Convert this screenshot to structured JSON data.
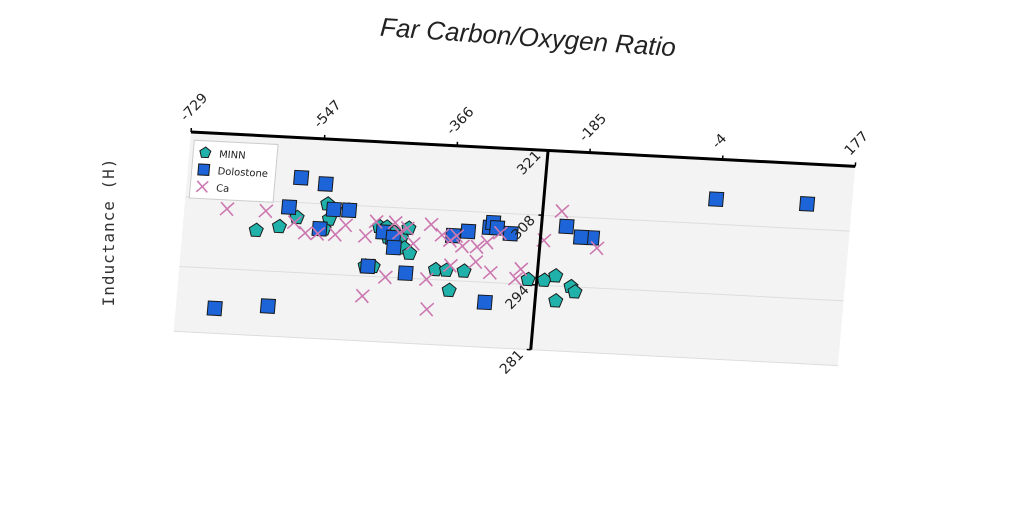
{
  "chart_data": {
    "type": "scatter",
    "title": "Far Carbon/Oxygen Ratio",
    "xlabel": "",
    "ylabel": "Inductance (H)",
    "x_ticks": [
      "-729",
      "-547",
      "-366",
      "-185",
      "-4",
      "177"
    ],
    "y_ticks": [
      "281",
      "294",
      "308",
      "321"
    ],
    "xlim": [
      -729,
      177
    ],
    "ylim": [
      281,
      321
    ],
    "grid": true,
    "legend_position": "top-left",
    "series": [
      {
        "name": "MINN",
        "marker": "pentagon",
        "color": "#20b2aa",
        "points": [
          [
            -629,
            302
          ],
          [
            -598,
            303
          ],
          [
            -575,
            305
          ],
          [
            -535,
            308
          ],
          [
            -531,
            305
          ],
          [
            -537,
            303
          ],
          [
            -506,
            307
          ],
          [
            -462,
            304
          ],
          [
            -452,
            304
          ],
          [
            -449,
            302
          ],
          [
            -441,
            303
          ],
          [
            -437,
            301
          ],
          [
            -431,
            302
          ],
          [
            -422,
            304
          ],
          [
            -426,
            300
          ],
          [
            -418,
            299
          ],
          [
            -477,
            296
          ],
          [
            -466,
            296
          ],
          [
            -381,
            296
          ],
          [
            -366,
            296
          ],
          [
            -342,
            296
          ],
          [
            -360,
            292
          ],
          [
            -254,
            295
          ],
          [
            -232,
            295
          ],
          [
            -195,
            294
          ],
          [
            -217,
            296
          ],
          [
            -189,
            293
          ],
          [
            -214,
            291
          ]
        ]
      },
      {
        "name": "Dolostone",
        "marker": "square",
        "color": "#1c64d8",
        "points": [
          [
            -639,
            311
          ],
          [
            -574,
            313
          ],
          [
            -540,
            312
          ],
          [
            -587,
            307
          ],
          [
            -505,
            307
          ],
          [
            -526,
            307
          ],
          [
            -456,
            303
          ],
          [
            -442,
            302
          ],
          [
            -440,
            300
          ],
          [
            -361,
            303
          ],
          [
            -341,
            304
          ],
          [
            -312,
            305
          ],
          [
            -308,
            306
          ],
          [
            -302,
            305
          ],
          [
            -283,
            304
          ],
          [
            -208,
            306
          ],
          [
            -172,
            304
          ],
          [
            -187,
            304
          ],
          [
            -473,
            296
          ],
          [
            -421,
            295
          ],
          [
            -676,
            286
          ],
          [
            -604,
            287
          ],
          [
            -310,
            290
          ],
          [
            -8,
            313
          ],
          [
            116,
            313
          ],
          [
            -543,
            303
          ]
        ]
      },
      {
        "name": "Ca",
        "marker": "x",
        "color": "#cc77b0",
        "points": [
          [
            -671,
            306
          ],
          [
            -618,
            306
          ],
          [
            -578,
            304
          ],
          [
            -562,
            302
          ],
          [
            -545,
            302
          ],
          [
            -521,
            302
          ],
          [
            -508,
            304
          ],
          [
            -480,
            302
          ],
          [
            -467,
            305
          ],
          [
            -441,
            305
          ],
          [
            -434,
            303
          ],
          [
            -424,
            304
          ],
          [
            -414,
            301
          ],
          [
            -392,
            305
          ],
          [
            -376,
            303
          ],
          [
            -364,
            302
          ],
          [
            -356,
            303
          ],
          [
            -347,
            301
          ],
          [
            -327,
            301
          ],
          [
            -314,
            302
          ],
          [
            -297,
            304
          ],
          [
            -271,
            295
          ],
          [
            -265,
            297
          ],
          [
            -237,
            303
          ],
          [
            -216,
            309
          ],
          [
            -164,
            302
          ],
          [
            -477,
            290
          ],
          [
            -388,
            288
          ],
          [
            -306,
            296
          ],
          [
            -327,
            298
          ],
          [
            -448,
            294
          ],
          [
            -392,
            294
          ],
          [
            -361,
            297
          ]
        ]
      }
    ]
  }
}
